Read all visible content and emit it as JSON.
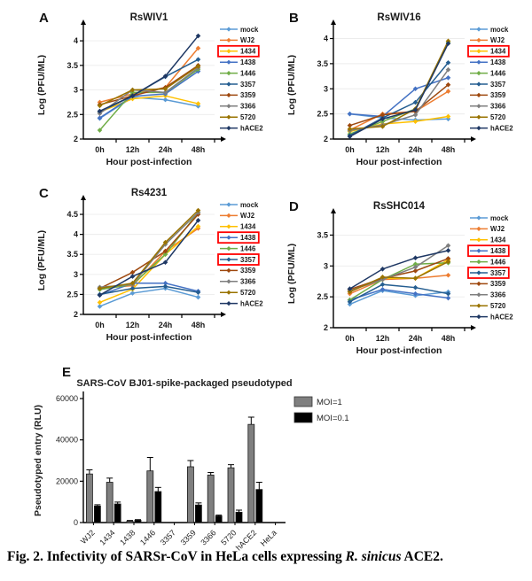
{
  "caption": {
    "prefix": "Fig. 2. Infectivity of SARSr-CoV in HeLa cells expressing ",
    "italic": "R. sinicus",
    "suffix": " ACE2."
  },
  "colors": {
    "red_box": "#FF0000",
    "axis": "#000000",
    "grid": "#ECECEC"
  },
  "chart_data": [
    {
      "type": "line",
      "panel": "A",
      "title": "RsWIV1",
      "xlabel": "Hour post-infection",
      "ylabel": "Log (PFU/ML)",
      "categories": [
        "0h",
        "12h",
        "24h",
        "48h"
      ],
      "ylim": [
        2,
        4.2
      ],
      "yticks": [
        2,
        2.5,
        3,
        3.5,
        4
      ],
      "grid": true,
      "legend_position": "right",
      "boxed_legend_items": [
        "1434"
      ],
      "series": [
        {
          "name": "mock",
          "color": "#5B9BD5",
          "values": [
            2.42,
            2.85,
            2.8,
            2.67
          ]
        },
        {
          "name": "WJ2",
          "color": "#ED7D31",
          "values": [
            2.75,
            2.92,
            3.05,
            3.85
          ]
        },
        {
          "name": "1434",
          "color": "#FFC000",
          "values": [
            2.55,
            2.82,
            2.88,
            2.72
          ]
        },
        {
          "name": "1438",
          "color": "#4472C4",
          "values": [
            2.43,
            2.87,
            2.92,
            3.38
          ]
        },
        {
          "name": "1446",
          "color": "#70AD47",
          "values": [
            2.18,
            2.95,
            2.95,
            3.42
          ]
        },
        {
          "name": "3357",
          "color": "#255E91",
          "values": [
            2.55,
            2.88,
            3.27,
            3.62
          ]
        },
        {
          "name": "3359",
          "color": "#9E480E",
          "values": [
            2.7,
            2.88,
            3.05,
            3.5
          ]
        },
        {
          "name": "3366",
          "color": "#7F7F7F",
          "values": [
            2.52,
            3.0,
            2.95,
            3.45
          ]
        },
        {
          "name": "5720",
          "color": "#997300",
          "values": [
            2.68,
            3.0,
            3.02,
            3.48
          ]
        },
        {
          "name": "hACE2",
          "color": "#1F3864",
          "values": [
            2.57,
            2.88,
            3.28,
            4.1
          ]
        }
      ]
    },
    {
      "type": "line",
      "panel": "B",
      "title": "RsWIV16",
      "xlabel": "Hour post-infection",
      "ylabel": "Log (PFU/ML)",
      "categories": [
        "0h",
        "12h",
        "24h",
        "48h"
      ],
      "ylim": [
        2,
        4.15
      ],
      "yticks": [
        2,
        2.5,
        3,
        3.5,
        4
      ],
      "grid": true,
      "legend_position": "right",
      "boxed_legend_items": [
        "1434"
      ],
      "series": [
        {
          "name": "mock",
          "color": "#5B9BD5",
          "values": [
            2.5,
            2.42,
            2.38,
            2.4
          ]
        },
        {
          "name": "WJ2",
          "color": "#ED7D31",
          "values": [
            2.18,
            2.5,
            2.55,
            2.95
          ]
        },
        {
          "name": "1434",
          "color": "#FFC000",
          "values": [
            2.15,
            2.3,
            2.35,
            2.45
          ]
        },
        {
          "name": "1438",
          "color": "#4472C4",
          "values": [
            2.5,
            2.45,
            3.0,
            3.22
          ]
        },
        {
          "name": "1446",
          "color": "#70AD47",
          "values": [
            2.1,
            2.35,
            2.6,
            3.92
          ]
        },
        {
          "name": "3357",
          "color": "#255E91",
          "values": [
            2.07,
            2.42,
            2.73,
            3.52
          ]
        },
        {
          "name": "3359",
          "color": "#9E480E",
          "values": [
            2.27,
            2.48,
            2.55,
            3.08
          ]
        },
        {
          "name": "3366",
          "color": "#7F7F7F",
          "values": [
            2.17,
            2.28,
            2.48,
            3.38
          ]
        },
        {
          "name": "5720",
          "color": "#997300",
          "values": [
            2.2,
            2.25,
            2.6,
            3.95
          ]
        },
        {
          "name": "hACE2",
          "color": "#1F3864",
          "values": [
            2.05,
            2.4,
            2.58,
            3.9
          ]
        }
      ]
    },
    {
      "type": "line",
      "panel": "C",
      "title": "Rs4231",
      "xlabel": "Hour post-infection",
      "ylabel": "Log (PFU/ML)",
      "categories": [
        "0h",
        "12h",
        "24h",
        "48h"
      ],
      "ylim": [
        2,
        4.7
      ],
      "yticks": [
        2,
        2.5,
        3,
        3.5,
        4,
        4.5
      ],
      "grid": true,
      "legend_position": "right",
      "boxed_legend_items": [
        "1438",
        "3357"
      ],
      "series": [
        {
          "name": "mock",
          "color": "#5B9BD5",
          "values": [
            2.2,
            2.53,
            2.65,
            2.43
          ]
        },
        {
          "name": "WJ2",
          "color": "#ED7D31",
          "values": [
            2.65,
            2.72,
            3.58,
            4.15
          ]
        },
        {
          "name": "1434",
          "color": "#FFC000",
          "values": [
            2.3,
            2.63,
            3.5,
            4.2
          ]
        },
        {
          "name": "1438",
          "color": "#4472C4",
          "values": [
            2.48,
            2.78,
            2.78,
            2.58
          ]
        },
        {
          "name": "1446",
          "color": "#70AD47",
          "values": [
            2.62,
            2.75,
            3.5,
            4.55
          ]
        },
        {
          "name": "3357",
          "color": "#255E91",
          "values": [
            2.5,
            2.65,
            2.7,
            2.55
          ]
        },
        {
          "name": "3359",
          "color": "#9E480E",
          "values": [
            2.65,
            3.05,
            3.58,
            4.5
          ]
        },
        {
          "name": "3366",
          "color": "#7F7F7F",
          "values": [
            2.68,
            2.75,
            3.75,
            4.55
          ]
        },
        {
          "name": "5720",
          "color": "#997300",
          "values": [
            2.65,
            2.78,
            3.8,
            4.6
          ]
        },
        {
          "name": "hACE2",
          "color": "#1F3864",
          "values": [
            2.48,
            2.95,
            3.3,
            4.35
          ]
        }
      ]
    },
    {
      "type": "line",
      "panel": "D",
      "title": "RsSHC014",
      "xlabel": "Hour post-infection",
      "ylabel": "Log (PFU/ML)",
      "categories": [
        "0h",
        "12h",
        "24h",
        "48h"
      ],
      "ylim": [
        2,
        3.75
      ],
      "yticks": [
        2,
        2.5,
        3,
        3.5
      ],
      "grid": true,
      "legend_position": "right",
      "boxed_legend_items": [
        "1438",
        "3357"
      ],
      "series": [
        {
          "name": "mock",
          "color": "#5B9BD5",
          "values": [
            2.38,
            2.6,
            2.52,
            2.58
          ]
        },
        {
          "name": "WJ2",
          "color": "#ED7D31",
          "values": [
            2.55,
            2.78,
            2.8,
            2.85
          ]
        },
        {
          "name": "1434",
          "color": "#FFC000",
          "values": [
            2.6,
            2.8,
            2.8,
            3.1
          ]
        },
        {
          "name": "1438",
          "color": "#4472C4",
          "values": [
            2.45,
            2.62,
            2.55,
            2.48
          ]
        },
        {
          "name": "1446",
          "color": "#70AD47",
          "values": [
            2.45,
            2.78,
            3.03,
            3.05
          ]
        },
        {
          "name": "3357",
          "color": "#255E91",
          "values": [
            2.42,
            2.7,
            2.65,
            2.55
          ]
        },
        {
          "name": "3359",
          "color": "#9E480E",
          "values": [
            2.62,
            2.8,
            2.92,
            3.12
          ]
        },
        {
          "name": "3366",
          "color": "#7F7F7F",
          "values": [
            2.6,
            2.78,
            2.98,
            3.33
          ]
        },
        {
          "name": "5720",
          "color": "#997300",
          "values": [
            2.58,
            2.82,
            2.8,
            3.07
          ]
        },
        {
          "name": "hACE2",
          "color": "#1F3864",
          "values": [
            2.63,
            2.95,
            3.13,
            3.25
          ]
        }
      ]
    },
    {
      "type": "bar",
      "panel": "E",
      "title": "SARS-CoV BJ01-spike-packaged pseudotyped",
      "xlabel": "",
      "ylabel": "Pseudotyped entry (RLU)",
      "categories": [
        "WJ2",
        "1434",
        "1438",
        "1446",
        "3357",
        "3359",
        "3366",
        "5720",
        "hACE2",
        "HeLa"
      ],
      "ylim": [
        0,
        60000
      ],
      "yticks": [
        0,
        20000,
        40000,
        60000
      ],
      "grid": false,
      "legend_position": "top-right",
      "series": [
        {
          "name": "MOI=1",
          "color": "#7F7F7F",
          "values": [
            23500,
            19500,
            700,
            25000,
            0,
            27000,
            23000,
            26500,
            47500,
            0
          ],
          "errors": [
            2000,
            2000,
            300,
            6500,
            0,
            3000,
            1200,
            1500,
            3500,
            0
          ]
        },
        {
          "name": "MOI=0.1",
          "color": "#000000",
          "values": [
            8000,
            9000,
            1100,
            15000,
            0,
            8500,
            3200,
            5000,
            16000,
            0
          ],
          "errors": [
            600,
            900,
            300,
            2000,
            0,
            1000,
            400,
            1000,
            3500,
            0
          ]
        }
      ]
    }
  ]
}
